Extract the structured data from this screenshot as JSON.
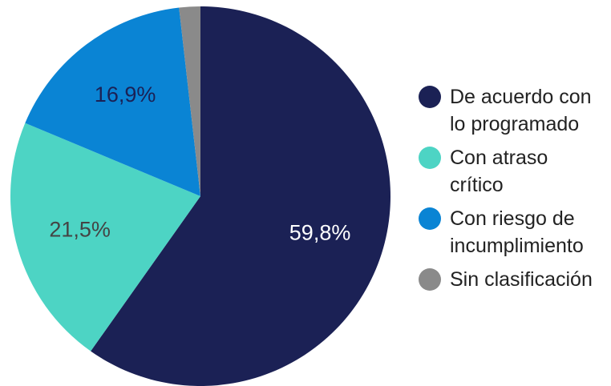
{
  "chart_data": {
    "type": "pie",
    "categories": [
      "De acuerdo con\nlo programado",
      "Con atraso\ncrítico",
      "Con riesgo de\nincumplimiento",
      "Sin clasificación"
    ],
    "values": [
      59.8,
      21.5,
      16.9,
      1.8
    ],
    "value_labels": [
      "59,8%",
      "21,5%",
      "16,9%",
      null
    ],
    "colors": [
      "#1b2155",
      "#4dd4c4",
      "#0a84d4",
      "#8a8a8a"
    ],
    "label_colors": [
      "#ffffff",
      "#444444",
      "#1b2155",
      null
    ]
  }
}
